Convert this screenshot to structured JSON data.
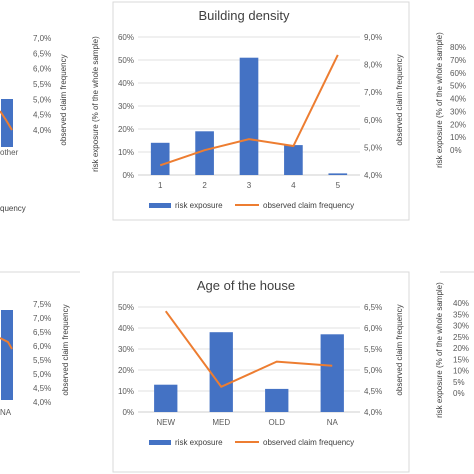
{
  "chart_data": [
    {
      "type": "bar",
      "title": "",
      "categories": [],
      "visible_tick_labels": [
        "other"
      ],
      "y_right_ticks": [
        "7,0%",
        "6,5%",
        "6,0%",
        "5,5%",
        "5,0%",
        "4,5%",
        "4,0%"
      ],
      "y_right_label": "observed claim frequency",
      "series": [],
      "legend_fragment": "quency"
    },
    {
      "type": "bar",
      "title": "Building density",
      "categories": [
        "1",
        "2",
        "3",
        "4",
        "5"
      ],
      "ylim_left": [
        0,
        60
      ],
      "ylim_right": [
        4.0,
        9.0
      ],
      "y_left_ticks": [
        "0%",
        "10%",
        "20%",
        "30%",
        "40%",
        "50%",
        "60%"
      ],
      "y_right_ticks": [
        "4,0%",
        "5,0%",
        "6,0%",
        "7,0%",
        "8,0%",
        "9,0%"
      ],
      "y_left_label": "risk exposure (% of the whole sample)",
      "y_right_label": "observed claim frequency",
      "series": [
        {
          "name": "risk exposure",
          "kind": "bar",
          "axis": "left",
          "values": [
            14,
            19,
            51,
            13,
            0.7
          ],
          "color": "#4472c4"
        },
        {
          "name": "observed claim frequency",
          "kind": "line",
          "axis": "right",
          "values": [
            4.35,
            4.9,
            5.3,
            5.05,
            8.35
          ],
          "color": "#ed7d31"
        }
      ],
      "legend": "bottom"
    },
    {
      "type": "bar",
      "title": "",
      "y_right_ticks": [
        "80%",
        "70%",
        "60%",
        "50%",
        "40%",
        "30%",
        "20%",
        "10%",
        "0%"
      ],
      "y_left_label": "risk exposure (% of the whole sample)",
      "series": []
    },
    {
      "type": "bar",
      "title": "",
      "visible_tick_labels": [
        "NA"
      ],
      "y_right_ticks": [
        "7,5%",
        "7,0%",
        "6,5%",
        "6,0%",
        "5,5%",
        "5,0%",
        "4,5%",
        "4,0%"
      ],
      "y_right_label": "observed claim frequency",
      "series": []
    },
    {
      "type": "bar",
      "title": "Age of the house",
      "categories": [
        "NEW",
        "MED",
        "OLD",
        "NA"
      ],
      "ylim_left": [
        0,
        50
      ],
      "ylim_right": [
        4.0,
        6.5
      ],
      "y_left_ticks": [
        "0%",
        "10%",
        "20%",
        "30%",
        "40%",
        "50%"
      ],
      "y_right_ticks": [
        "4,0%",
        "4,5%",
        "5,0%",
        "5,5%",
        "6,0%",
        "6,5%"
      ],
      "y_left_label": "risk exposure (% of the whole sample)",
      "y_right_label": "observed claim frequency",
      "series": [
        {
          "name": "risk exposure",
          "kind": "bar",
          "axis": "left",
          "values": [
            13,
            38,
            11,
            37
          ],
          "color": "#4472c4"
        },
        {
          "name": "observed claim frequency",
          "kind": "line",
          "axis": "right",
          "values": [
            6.4,
            4.6,
            5.2,
            5.1
          ],
          "color": "#ed7d31"
        }
      ],
      "legend": "bottom"
    },
    {
      "type": "bar",
      "title": "",
      "y_right_ticks": [
        "40%",
        "35%",
        "30%",
        "25%",
        "20%",
        "15%",
        "10%",
        "5%",
        "0%"
      ],
      "y_left_label": "risk exposure (% of the whole sample)",
      "series": []
    }
  ]
}
